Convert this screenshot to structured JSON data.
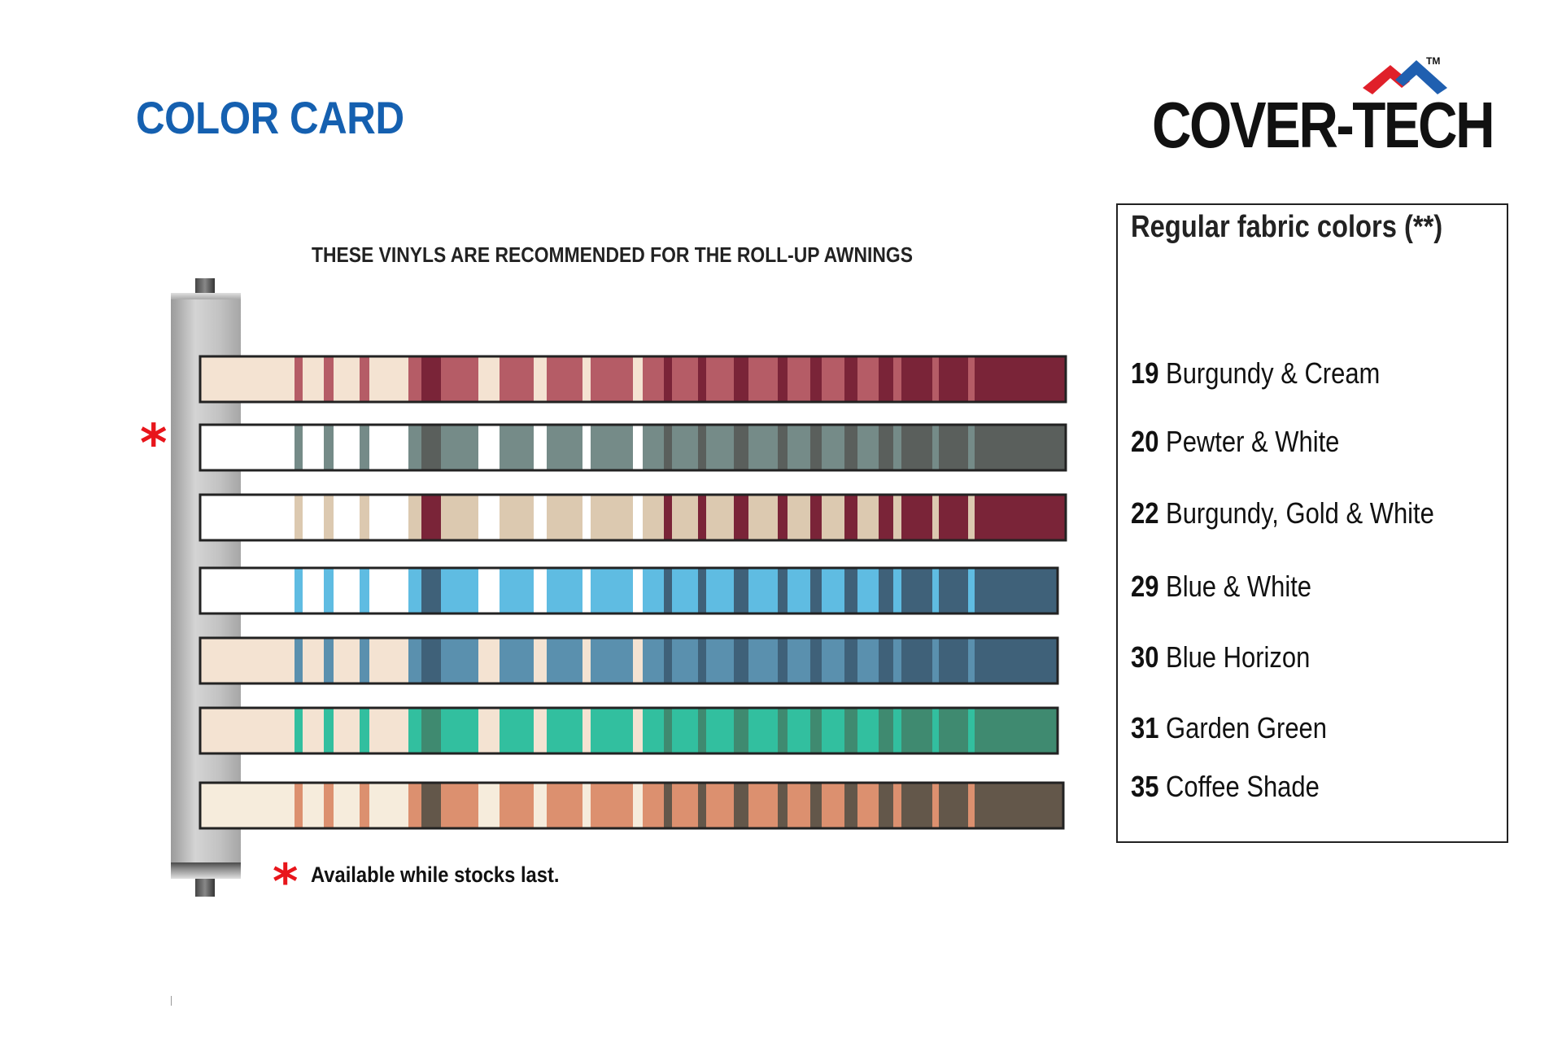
{
  "header": {
    "title": "COLOR CARD",
    "title_color": "#1560b0"
  },
  "logo": {
    "text": "COVER-TECH",
    "trademark": "TM",
    "roof_colors": [
      "#e0202a",
      "#1f5fb0"
    ]
  },
  "subtitle": "THESE VINYLS ARE RECOMMENDED FOR THE ROLL-UP AWNINGS",
  "legend": {
    "title": "Regular fabric colors (**)",
    "items": [
      {
        "code": "19",
        "name": "Burgundy & Cream"
      },
      {
        "code": "20",
        "name": "Pewter & White"
      },
      {
        "code": "22",
        "name": "Burgundy, Gold & White"
      },
      {
        "code": "29",
        "name": "Blue & White"
      },
      {
        "code": "30",
        "name": "Blue Horizon"
      },
      {
        "code": "31",
        "name": "Garden Green"
      },
      {
        "code": "35",
        "name": "Coffee Shade"
      }
    ]
  },
  "swatches": [
    {
      "code": "19",
      "light": "#f4e3d2",
      "mid": "#b55c66",
      "dark": "#7a2438",
      "starred": false
    },
    {
      "code": "20",
      "light": "#ffffff",
      "mid": "#758b88",
      "dark": "#5a5f5c",
      "starred": true
    },
    {
      "code": "22",
      "light": "#ffffff",
      "mid": "#dcc9b0",
      "dark": "#7a2438",
      "starred": false
    },
    {
      "code": "29",
      "light": "#ffffff",
      "mid": "#5fbce2",
      "dark": "#3f6179",
      "starred": false
    },
    {
      "code": "30",
      "light": "#f4e3d2",
      "mid": "#5a90ae",
      "dark": "#3f6179",
      "starred": false
    },
    {
      "code": "31",
      "light": "#f4e3d2",
      "mid": "#32bf9f",
      "dark": "#3f8a70",
      "starred": false
    },
    {
      "code": "35",
      "light": "#f6ecdc",
      "mid": "#dc906f",
      "dark": "#63574a",
      "starred": false
    }
  ],
  "footnote": {
    "marker": "*",
    "text": "Available while stocks last."
  },
  "accent_color": "#e8151b"
}
